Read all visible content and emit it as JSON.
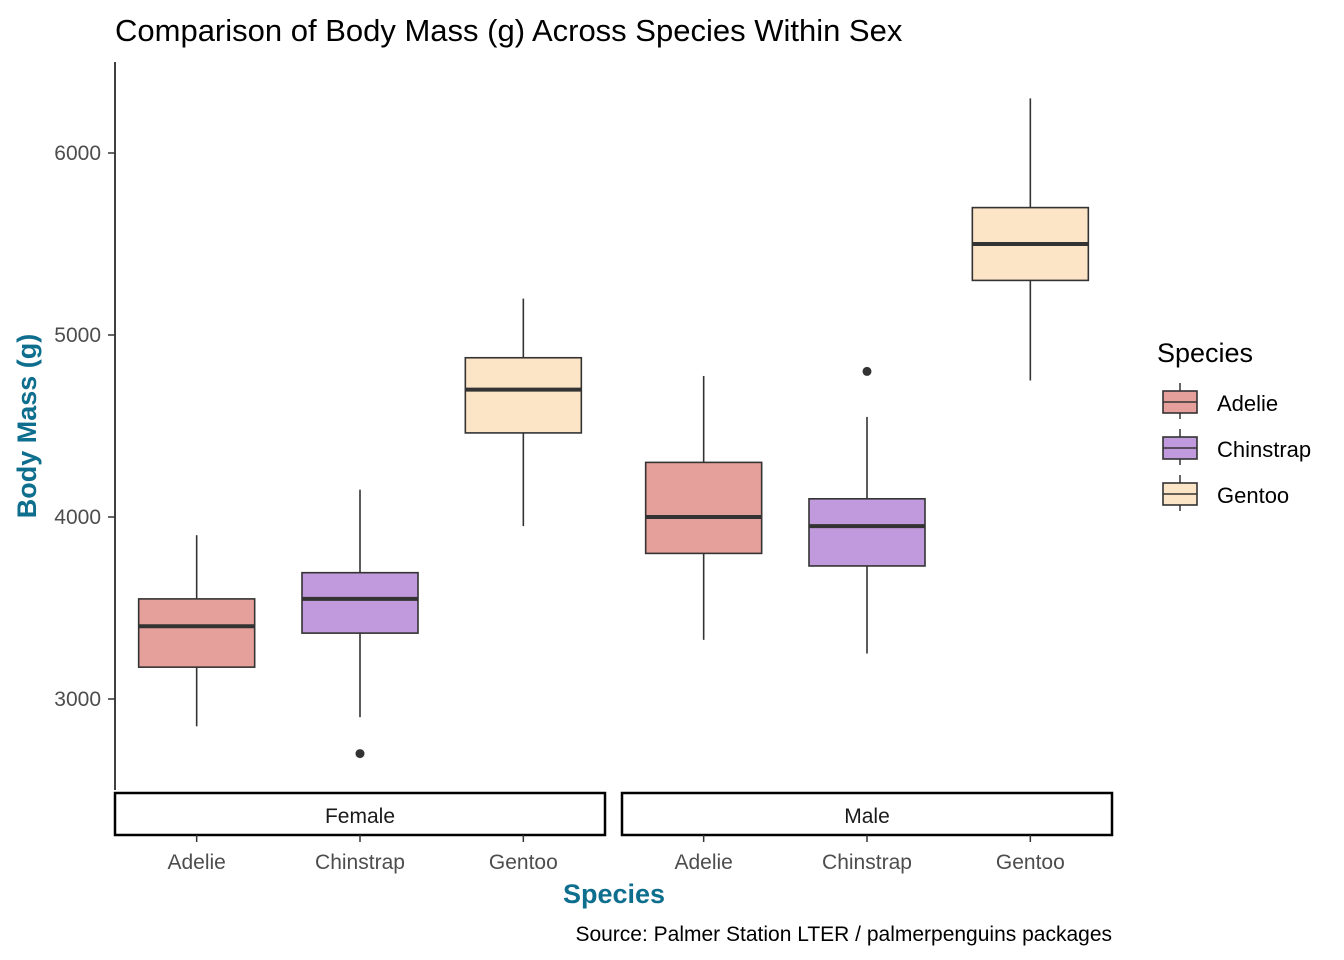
{
  "chart_data": {
    "type": "box",
    "title": "Comparison of Body Mass (g) Across Species Within Sex",
    "xlabel": "Species",
    "ylabel": "Body Mass (g)",
    "caption": "Source: Palmer Station LTER / palmerpenguins packages",
    "ylim": [
      2500,
      6500
    ],
    "yticks": [
      3000,
      4000,
      5000,
      6000
    ],
    "grid": false,
    "axis_title_color": "#0e6e8e",
    "categories": [
      "Adelie",
      "Chinstrap",
      "Gentoo"
    ],
    "facets": [
      "Female",
      "Male"
    ],
    "legend": {
      "title": "Species",
      "position": "right",
      "items": [
        {
          "name": "Adelie",
          "color": "#e6a09b"
        },
        {
          "name": "Chinstrap",
          "color": "#c19ade"
        },
        {
          "name": "Gentoo",
          "color": "#fce4c6"
        }
      ]
    },
    "boxes": [
      {
        "facet": "Female",
        "species": "Adelie",
        "min": 2850,
        "q1": 3175,
        "median": 3400,
        "q3": 3550,
        "max": 3900,
        "outliers": []
      },
      {
        "facet": "Female",
        "species": "Chinstrap",
        "min": 2900,
        "q1": 3362,
        "median": 3550,
        "q3": 3694,
        "max": 4150,
        "outliers": [
          2700
        ]
      },
      {
        "facet": "Female",
        "species": "Gentoo",
        "min": 3950,
        "q1": 4462,
        "median": 4700,
        "q3": 4875,
        "max": 5200,
        "outliers": []
      },
      {
        "facet": "Male",
        "species": "Adelie",
        "min": 3325,
        "q1": 3800,
        "median": 4000,
        "q3": 4300,
        "max": 4775,
        "outliers": []
      },
      {
        "facet": "Male",
        "species": "Chinstrap",
        "min": 3250,
        "q1": 3731,
        "median": 3950,
        "q3": 4100,
        "max": 4550,
        "outliers": [
          4800
        ]
      },
      {
        "facet": "Male",
        "species": "Gentoo",
        "min": 4750,
        "q1": 5300,
        "median": 5500,
        "q3": 5700,
        "max": 6300,
        "outliers": []
      }
    ]
  }
}
